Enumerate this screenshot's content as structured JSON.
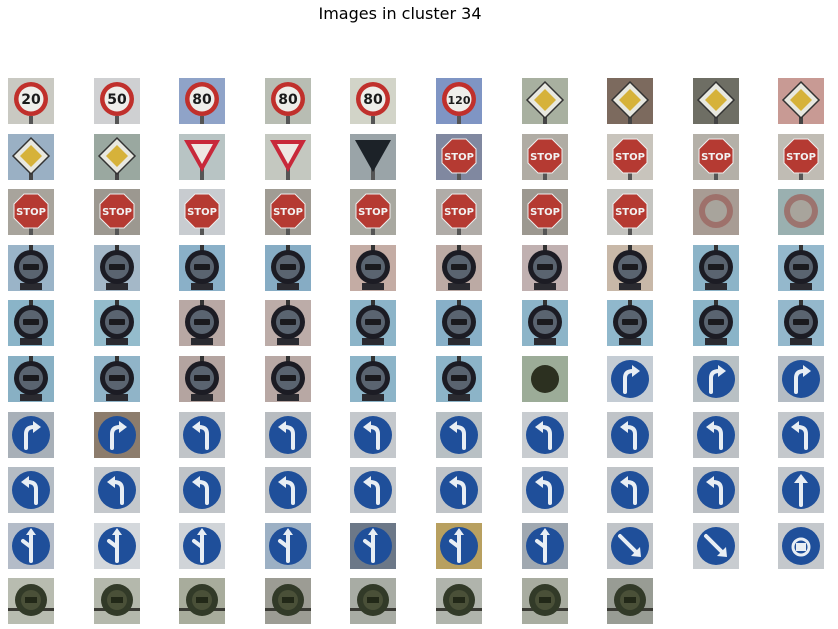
{
  "title": "Images in cluster 34",
  "rows": [
    [
      {
        "kind": "speed",
        "text": "20",
        "bg": "#c9c9c2"
      },
      {
        "kind": "speed",
        "text": "50",
        "bg": "#cfd0d2"
      },
      {
        "kind": "speed",
        "text": "80",
        "bg": "#8fa3c8"
      },
      {
        "kind": "speed",
        "text": "80",
        "bg": "#b8bdb3"
      },
      {
        "kind": "speed",
        "text": "80",
        "bg": "#d2d4c8"
      },
      {
        "kind": "speed",
        "text": "120",
        "bg": "#7f95c4"
      },
      {
        "kind": "priority",
        "bg": "#a8b0a0"
      },
      {
        "kind": "priority",
        "bg": "#7c6a5e"
      },
      {
        "kind": "priority",
        "bg": "#6e6e64"
      },
      {
        "kind": "priority",
        "bg": "#c89a94"
      }
    ],
    [
      {
        "kind": "priority",
        "bg": "#9ab0c4"
      },
      {
        "kind": "priority",
        "bg": "#9aa8a0"
      },
      {
        "kind": "yield",
        "bg": "#b8c4c4"
      },
      {
        "kind": "yield",
        "bg": "#c4c8c0"
      },
      {
        "kind": "yield-dark",
        "bg": "#9aa4a8"
      },
      {
        "kind": "stop",
        "text": "STOP",
        "bg": "#8088a0"
      },
      {
        "kind": "stop",
        "text": "STOP",
        "bg": "#b0aca4"
      },
      {
        "kind": "stop",
        "text": "STOP",
        "bg": "#c8c4bc"
      },
      {
        "kind": "stop",
        "text": "STOP",
        "bg": "#b4b0a8"
      },
      {
        "kind": "stop",
        "text": "STOP",
        "bg": "#c0bcb4"
      }
    ],
    [
      {
        "kind": "stop",
        "text": "STOP",
        "bg": "#a8a49c"
      },
      {
        "kind": "stop",
        "text": "STOP",
        "bg": "#9c9890"
      },
      {
        "kind": "stop",
        "text": "STOP",
        "bg": "#c8ccd0"
      },
      {
        "kind": "stop",
        "text": "STOP",
        "bg": "#a09c94"
      },
      {
        "kind": "stop",
        "text": "STOP",
        "bg": "#a8a8a0"
      },
      {
        "kind": "stop",
        "text": "STOP",
        "bg": "#b0aca8"
      },
      {
        "kind": "stop",
        "text": "STOP",
        "bg": "#9c9890"
      },
      {
        "kind": "stop",
        "text": "STOP",
        "bg": "#c4c4c0"
      },
      {
        "kind": "faded",
        "bg": "#a89c94"
      },
      {
        "kind": "faded",
        "bg": "#9ab0b0"
      }
    ],
    [
      {
        "kind": "truck",
        "bg": "#9ab4c8"
      },
      {
        "kind": "truck",
        "bg": "#a4b8c8"
      },
      {
        "kind": "truck",
        "bg": "#8ab0c8"
      },
      {
        "kind": "truck",
        "bg": "#86acc4"
      },
      {
        "kind": "truck",
        "bg": "#c4aca4"
      },
      {
        "kind": "truck",
        "bg": "#bcaaa4"
      },
      {
        "kind": "truck",
        "bg": "#c0b0b0"
      },
      {
        "kind": "truck",
        "bg": "#c8b8a8"
      },
      {
        "kind": "truck",
        "bg": "#8cb4c8"
      },
      {
        "kind": "truck",
        "bg": "#94b8cc"
      }
    ],
    [
      {
        "kind": "truck",
        "bg": "#8ab4c8"
      },
      {
        "kind": "truck",
        "bg": "#94bccc"
      },
      {
        "kind": "truck",
        "bg": "#b8a8a4"
      },
      {
        "kind": "truck",
        "bg": "#bcaca8"
      },
      {
        "kind": "truck",
        "bg": "#8cb4c8"
      },
      {
        "kind": "truck",
        "bg": "#88b0c8"
      },
      {
        "kind": "truck",
        "bg": "#8cb4c8"
      },
      {
        "kind": "truck",
        "bg": "#90b8cc"
      },
      {
        "kind": "truck",
        "bg": "#8ab4c8"
      },
      {
        "kind": "truck",
        "bg": "#94b8cc"
      }
    ],
    [
      {
        "kind": "truck",
        "bg": "#88b0c4"
      },
      {
        "kind": "truck",
        "bg": "#90b4c8"
      },
      {
        "kind": "truck",
        "bg": "#b4a4a0"
      },
      {
        "kind": "truck",
        "bg": "#b8a8a4"
      },
      {
        "kind": "truck",
        "bg": "#8cb4c8"
      },
      {
        "kind": "truck",
        "bg": "#8cb4c8"
      },
      {
        "kind": "dark-circle",
        "bg": "#9cac98"
      },
      {
        "kind": "turn-right",
        "bg": "#c4ccd4"
      },
      {
        "kind": "turn-right",
        "bg": "#b8c0c4"
      },
      {
        "kind": "turn-right",
        "bg": "#b4bcc4"
      }
    ],
    [
      {
        "kind": "turn-right",
        "bg": "#a8b0b8"
      },
      {
        "kind": "turn-right",
        "bg": "#8c7c6c"
      },
      {
        "kind": "turn-left",
        "bg": "#c0c4c8"
      },
      {
        "kind": "turn-left",
        "bg": "#b8bcc0"
      },
      {
        "kind": "turn-left",
        "bg": "#c4c8cc"
      },
      {
        "kind": "turn-left",
        "bg": "#b8c0c4"
      },
      {
        "kind": "turn-left",
        "bg": "#c8ccd0"
      },
      {
        "kind": "turn-left",
        "bg": "#c0c4c8"
      },
      {
        "kind": "turn-left",
        "bg": "#bcc0c4"
      },
      {
        "kind": "turn-left",
        "bg": "#c4c8cc"
      }
    ],
    [
      {
        "kind": "turn-left",
        "bg": "#b4bcc4"
      },
      {
        "kind": "turn-left",
        "bg": "#c4c8cc"
      },
      {
        "kind": "turn-left",
        "bg": "#c0c4c8"
      },
      {
        "kind": "turn-left",
        "bg": "#bcc0c4"
      },
      {
        "kind": "turn-left",
        "bg": "#c4c8cc"
      },
      {
        "kind": "turn-left",
        "bg": "#c0c4c8"
      },
      {
        "kind": "turn-left",
        "bg": "#c8ccd0"
      },
      {
        "kind": "turn-left",
        "bg": "#c0c4c8"
      },
      {
        "kind": "turn-left",
        "bg": "#bcc0c4"
      },
      {
        "kind": "straight",
        "bg": "#c4c8cc"
      }
    ],
    [
      {
        "kind": "fork",
        "bg": "#b4bcc8"
      },
      {
        "kind": "fork",
        "bg": "#d4d8dc"
      },
      {
        "kind": "fork",
        "bg": "#d0d4d8"
      },
      {
        "kind": "fork",
        "bg": "#9cb0c4"
      },
      {
        "kind": "fork",
        "bg": "#6c7888"
      },
      {
        "kind": "fork",
        "bg": "#b8a060"
      },
      {
        "kind": "fork",
        "bg": "#a0a8b0"
      },
      {
        "kind": "diag-arrow",
        "bg": "#c0c4c8"
      },
      {
        "kind": "diag-arrow",
        "bg": "#c8ccd0"
      },
      {
        "kind": "roundabout",
        "bg": "#c4c8cc"
      }
    ],
    [
      {
        "kind": "dark-sign",
        "bg": "#b8bcb0"
      },
      {
        "kind": "dark-sign",
        "bg": "#b4b8ac"
      },
      {
        "kind": "dark-sign",
        "bg": "#a8ac9c"
      },
      {
        "kind": "dark-sign",
        "bg": "#9c9c94"
      },
      {
        "kind": "dark-sign",
        "bg": "#a8aca4"
      },
      {
        "kind": "dark-sign",
        "bg": "#b0b4ac"
      },
      {
        "kind": "dark-sign",
        "bg": "#a8aca0"
      },
      {
        "kind": "dark-sign",
        "bg": "#989c94"
      }
    ]
  ]
}
